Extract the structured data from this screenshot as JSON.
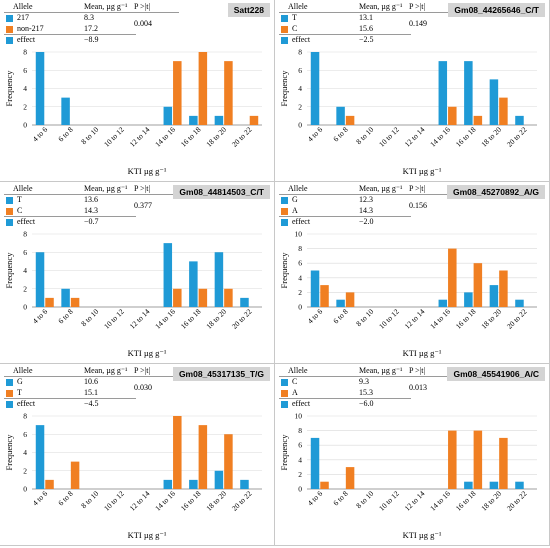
{
  "colors": {
    "blue": "#1f9ad6",
    "orange": "#f07f22",
    "axis": "#7f7f7f",
    "grid": "#d9d9d9",
    "marker_bg": "#d4d4d4"
  },
  "common": {
    "stats_headers": {
      "allele": "Allele",
      "mean": "Mean, µg g⁻¹",
      "p": "P >|t|"
    },
    "xlabel": "KTI µg  g⁻¹",
    "ylabel": "Frequency",
    "categories": [
      "4 to 6",
      "6 to 8",
      "8 to 10",
      "10 to 12",
      "12 to 14",
      "14 to 16",
      "16 to 18",
      "18 to 20",
      "20 to 22"
    ]
  },
  "panels": [
    {
      "marker": "Satt228",
      "rows": [
        {
          "allele": "217",
          "mean": "8.3"
        },
        {
          "allele": "non-217",
          "mean": "17.2"
        },
        {
          "allele": "effect",
          "mean": "−8.9"
        }
      ],
      "p_value": "0.004"
    },
    {
      "marker": "Gm08_44265646_C/T",
      "rows": [
        {
          "allele": "T",
          "mean": "13.1"
        },
        {
          "allele": "C",
          "mean": "15.6"
        },
        {
          "allele": "effect",
          "mean": "−2.5"
        }
      ],
      "p_value": "0.149"
    },
    {
      "marker": "Gm08_44814503_C/T",
      "rows": [
        {
          "allele": "T",
          "mean": "13.6"
        },
        {
          "allele": "C",
          "mean": "14.3"
        },
        {
          "allele": "effect",
          "mean": "−0.7"
        }
      ],
      "p_value": "0.377"
    },
    {
      "marker": "Gm08_45270892_A/G",
      "rows": [
        {
          "allele": "G",
          "mean": "12.3"
        },
        {
          "allele": "A",
          "mean": "14.3"
        },
        {
          "allele": "effect",
          "mean": "−2.0"
        }
      ],
      "p_value": "0.156"
    },
    {
      "marker": "Gm08_45317135_T/G",
      "rows": [
        {
          "allele": "G",
          "mean": "10.6"
        },
        {
          "allele": "T",
          "mean": "15.1"
        },
        {
          "allele": "effect",
          "mean": "−4.5"
        }
      ],
      "p_value": "0.030"
    },
    {
      "marker": "Gm08_45541906_A/C",
      "rows": [
        {
          "allele": "C",
          "mean": "9.3"
        },
        {
          "allele": "A",
          "mean": "15.3"
        },
        {
          "allele": "effect",
          "mean": "−6.0"
        }
      ],
      "p_value": "0.013"
    }
  ],
  "chart_data": [
    {
      "type": "bar",
      "title": "Satt228",
      "xlabel": "KTI µg  g⁻¹",
      "ylabel": "Frequency",
      "ylim": [
        0,
        8
      ],
      "yticks": [
        0,
        2,
        4,
        6,
        8
      ],
      "categories": [
        "4 to 6",
        "6 to 8",
        "8 to 10",
        "10 to 12",
        "12 to 14",
        "14 to 16",
        "16 to 18",
        "18 to 20",
        "20 to 22"
      ],
      "series": [
        {
          "name": "217",
          "values": [
            8,
            3,
            0,
            0,
            0,
            2,
            1,
            1,
            0
          ]
        },
        {
          "name": "non-217",
          "values": [
            0,
            0,
            0,
            0,
            0,
            7,
            8,
            7,
            1
          ]
        }
      ]
    },
    {
      "type": "bar",
      "title": "Gm08_44265646_C/T",
      "xlabel": "KTI µg  g⁻¹",
      "ylabel": "Frequency",
      "ylim": [
        0,
        8
      ],
      "yticks": [
        0,
        2,
        4,
        6,
        8
      ],
      "categories": [
        "4 to 6",
        "6 to 8",
        "8 to 10",
        "10 to 12",
        "12 to 14",
        "14 to 16",
        "16 to 18",
        "18 to 20",
        "20 to 22"
      ],
      "series": [
        {
          "name": "T",
          "values": [
            8,
            2,
            0,
            0,
            0,
            7,
            7,
            5,
            1
          ]
        },
        {
          "name": "C",
          "values": [
            0,
            1,
            0,
            0,
            0,
            2,
            1,
            3,
            0
          ]
        }
      ]
    },
    {
      "type": "bar",
      "title": "Gm08_44814503_C/T",
      "xlabel": "KTI µg  g⁻¹",
      "ylabel": "Frequency",
      "ylim": [
        0,
        8
      ],
      "yticks": [
        0,
        2,
        4,
        6,
        8
      ],
      "categories": [
        "4 to 6",
        "6 to 8",
        "8 to 10",
        "10 to 12",
        "12 to 14",
        "14 to 16",
        "16 to 18",
        "18 to 20",
        "20 to 22"
      ],
      "series": [
        {
          "name": "T",
          "values": [
            6,
            2,
            0,
            0,
            0,
            7,
            5,
            6,
            1
          ]
        },
        {
          "name": "C",
          "values": [
            1,
            1,
            0,
            0,
            0,
            2,
            2,
            2,
            0
          ]
        }
      ]
    },
    {
      "type": "bar",
      "title": "Gm08_45270892_A/G",
      "xlabel": "KTI µg  g⁻¹",
      "ylabel": "Frequency",
      "ylim": [
        0,
        10
      ],
      "yticks": [
        0,
        2,
        4,
        6,
        8,
        10
      ],
      "categories": [
        "4 to 6",
        "6 to 8",
        "8 to 10",
        "10 to 12",
        "12 to 14",
        "14 to 16",
        "16 to 18",
        "18 to 20",
        "20 to 22"
      ],
      "series": [
        {
          "name": "G",
          "values": [
            5,
            1,
            0,
            0,
            0,
            1,
            2,
            3,
            1
          ]
        },
        {
          "name": "A",
          "values": [
            3,
            2,
            0,
            0,
            0,
            8,
            6,
            5,
            0
          ]
        }
      ]
    },
    {
      "type": "bar",
      "title": "Gm08_45317135_T/G",
      "xlabel": "KTI µg  g⁻¹",
      "ylabel": "Frequency",
      "ylim": [
        0,
        8
      ],
      "yticks": [
        0,
        2,
        4,
        6,
        8
      ],
      "categories": [
        "4 to 6",
        "6 to 8",
        "8 to 10",
        "10 to 12",
        "12 to 14",
        "14 to 16",
        "16 to 18",
        "18 to 20",
        "20 to 22"
      ],
      "series": [
        {
          "name": "G",
          "values": [
            7,
            0,
            0,
            0,
            0,
            1,
            1,
            2,
            1
          ]
        },
        {
          "name": "T",
          "values": [
            1,
            3,
            0,
            0,
            0,
            8,
            7,
            6,
            0
          ]
        }
      ]
    },
    {
      "type": "bar",
      "title": "Gm08_45541906_A/C",
      "xlabel": "KTI µg  g⁻¹",
      "ylabel": "Frequency",
      "ylim": [
        0,
        10
      ],
      "yticks": [
        0,
        2,
        4,
        6,
        8,
        10
      ],
      "categories": [
        "4 to 6",
        "6 to 8",
        "8 to 10",
        "10 to 12",
        "12 to 14",
        "14 to 16",
        "16 to 18",
        "18 to 20",
        "20 to 22"
      ],
      "series": [
        {
          "name": "C",
          "values": [
            7,
            0,
            0,
            0,
            0,
            0,
            1,
            1,
            1
          ]
        },
        {
          "name": "A",
          "values": [
            1,
            3,
            0,
            0,
            0,
            8,
            8,
            7,
            0
          ]
        }
      ]
    }
  ]
}
